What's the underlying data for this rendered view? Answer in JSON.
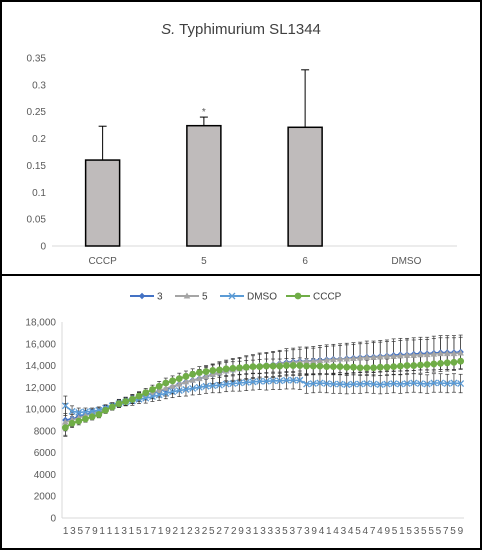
{
  "chart_data": [
    {
      "type": "bar",
      "title_italic": "S.",
      "title_rest": " Typhimurium SL1344",
      "categories": [
        "CCCP",
        "5",
        "6",
        "DMSO"
      ],
      "values": [
        0.16,
        0.224,
        0.221,
        0
      ],
      "errors": [
        0.063,
        0.016,
        0.107,
        0
      ],
      "significance": [
        "",
        "*",
        "",
        ""
      ],
      "yticks": [
        "0",
        "0.05",
        "0.1",
        "0.15",
        "0.2",
        "0.25",
        "0.3",
        "0.35"
      ],
      "ylim": [
        0,
        0.35
      ],
      "bar_color": "#bfbbbb",
      "grid": false
    },
    {
      "type": "line",
      "legend_position": "top",
      "xticks": [
        "1",
        "3",
        "5",
        "7",
        "9",
        "1",
        "1",
        "1",
        "3",
        "1",
        "5",
        "1",
        "7",
        "1",
        "9",
        "2",
        "1",
        "2",
        "3",
        "2",
        "5",
        "2",
        "7",
        "2",
        "9",
        "3",
        "1",
        "3",
        "3",
        "3",
        "5",
        "3",
        "7",
        "3",
        "9",
        "4",
        "1",
        "4",
        "3",
        "4",
        "5",
        "4",
        "7",
        "4",
        "9",
        "5",
        "1",
        "5",
        "3",
        "5",
        "5",
        "5",
        "7",
        "5",
        "9"
      ],
      "yticks": [
        "0",
        "2000",
        "4000",
        "6000",
        "8000",
        "10,000",
        "12,000",
        "14,000",
        "16,000",
        "18,000"
      ],
      "ylim": [
        0,
        18000
      ],
      "x": [
        1,
        2,
        3,
        4,
        5,
        6,
        7,
        8,
        9,
        10,
        11,
        12,
        13,
        14,
        15,
        16,
        17,
        18,
        19,
        20,
        21,
        22,
        23,
        24,
        25,
        26,
        27,
        28,
        29,
        30,
        31,
        32,
        33,
        34,
        35,
        36,
        37,
        38,
        39,
        40,
        41,
        42,
        43,
        44,
        45,
        46,
        47,
        48,
        49,
        50,
        51,
        52,
        53,
        54,
        55,
        56,
        57,
        58,
        59,
        60
      ],
      "series": [
        {
          "name": "3",
          "color": "#4472c4",
          "marker": "diamond",
          "values": [
            9000,
            9100,
            9300,
            9500,
            9700,
            9800,
            10100,
            10300,
            10600,
            10800,
            11000,
            11150,
            11300,
            11450,
            11650,
            11800,
            12050,
            12300,
            12500,
            12650,
            12800,
            13000,
            13200,
            13350,
            13500,
            13600,
            13700,
            13800,
            13900,
            14000,
            14050,
            14100,
            14200,
            14300,
            14350,
            14400,
            14400,
            14450,
            14500,
            14550,
            14600,
            14600,
            14650,
            14700,
            14750,
            14800,
            14800,
            14850,
            14900,
            14950,
            15000,
            15000,
            15050,
            15100,
            15100,
            15150,
            15200,
            15200,
            15200,
            15250
          ],
          "errors": [
            1500,
            700,
            500,
            400,
            300,
            300,
            250,
            250,
            300,
            300,
            350,
            400,
            450,
            500,
            550,
            600,
            650,
            700,
            750,
            800,
            850,
            900,
            950,
            1000,
            1000,
            1050,
            1050,
            1100,
            1100,
            1150,
            1150,
            1200,
            1200,
            1250,
            1250,
            1300,
            1300,
            1300,
            1350,
            1350,
            1350,
            1400,
            1400,
            1400,
            1400,
            1450,
            1450,
            1450,
            1450,
            1500,
            1500,
            1500,
            1500,
            1500,
            1500,
            1550,
            1550,
            1550,
            1550,
            1550
          ]
        },
        {
          "name": "5",
          "color": "#a5a5a5",
          "marker": "triangle",
          "values": [
            8800,
            9000,
            9200,
            9400,
            9600,
            9800,
            10000,
            10250,
            10500,
            10700,
            10900,
            11100,
            11300,
            11500,
            11700,
            11900,
            12100,
            12300,
            12500,
            12650,
            12800,
            13000,
            13200,
            13350,
            13500,
            13600,
            13700,
            13800,
            13900,
            14000,
            14050,
            14100,
            14200,
            14250,
            14300,
            14350,
            14400,
            14400,
            14450,
            14500,
            14550,
            14600,
            14600,
            14650,
            14700,
            14750,
            14750,
            14800,
            14850,
            14850,
            14900,
            14950,
            14950,
            15000,
            15000,
            15050,
            15100,
            15100,
            15100,
            15150
          ],
          "errors": [
            800,
            500,
            400,
            350,
            300,
            300,
            300,
            300,
            350,
            350,
            400,
            400,
            450,
            450,
            500,
            550,
            600,
            650,
            700,
            750,
            800,
            800,
            850,
            900,
            900,
            950,
            950,
            1000,
            1000,
            1050,
            1050,
            1100,
            1100,
            1100,
            1150,
            1150,
            1200,
            1200,
            1200,
            1250,
            1250,
            1250,
            1300,
            1300,
            1300,
            1300,
            1350,
            1350,
            1350,
            1350,
            1400,
            1400,
            1400,
            1400,
            1400,
            1450,
            1450,
            1450,
            1450,
            1450
          ]
        },
        {
          "name": "DMSO",
          "color": "#5b9bd5",
          "marker": "x",
          "values": [
            10300,
            9800,
            9700,
            9750,
            9800,
            9900,
            10100,
            10300,
            10500,
            10650,
            10750,
            10900,
            11000,
            11150,
            11300,
            11450,
            11600,
            11700,
            11800,
            11900,
            12000,
            12100,
            12150,
            12200,
            12300,
            12350,
            12400,
            12450,
            12500,
            12550,
            12550,
            12600,
            12600,
            12650,
            12650,
            12650,
            12300,
            12350,
            12400,
            12350,
            12300,
            12300,
            12250,
            12300,
            12300,
            12350,
            12300,
            12250,
            12300,
            12350,
            12300,
            12350,
            12400,
            12350,
            12300,
            12400,
            12400,
            12350,
            12400,
            12350
          ],
          "errors": [
            900,
            500,
            400,
            350,
            300,
            300,
            300,
            300,
            350,
            350,
            400,
            400,
            450,
            450,
            500,
            500,
            550,
            550,
            600,
            600,
            650,
            650,
            650,
            700,
            700,
            700,
            750,
            750,
            750,
            750,
            800,
            800,
            800,
            800,
            800,
            850,
            850,
            850,
            850,
            850,
            850,
            850,
            850,
            850,
            850,
            850,
            850,
            850,
            850,
            850,
            850,
            850,
            850,
            850,
            850,
            850,
            850,
            850,
            850,
            850
          ]
        },
        {
          "name": "CCCP",
          "color": "#70ad47",
          "marker": "circle",
          "values": [
            8300,
            8700,
            8900,
            9100,
            9300,
            9500,
            9900,
            10200,
            10500,
            10700,
            10900,
            11200,
            11500,
            11800,
            12100,
            12400,
            12600,
            12800,
            13000,
            13200,
            13350,
            13450,
            13550,
            13600,
            13700,
            13750,
            13800,
            13850,
            13900,
            13900,
            13950,
            13950,
            13950,
            14000,
            14000,
            14000,
            13950,
            13950,
            13950,
            13900,
            13900,
            13900,
            13850,
            13850,
            13800,
            13800,
            13800,
            13850,
            13850,
            13900,
            13950,
            14000,
            14000,
            14050,
            14100,
            14150,
            14200,
            14250,
            14300,
            14400
          ],
          "errors": [
            700,
            400,
            350,
            300,
            300,
            300,
            300,
            300,
            300,
            350,
            350,
            400,
            400,
            400,
            450,
            450,
            450,
            500,
            500,
            500,
            550,
            550,
            550,
            550,
            600,
            600,
            600,
            600,
            600,
            650,
            650,
            650,
            650,
            650,
            650,
            700,
            700,
            700,
            700,
            700,
            700,
            700,
            700,
            700,
            700,
            700,
            750,
            750,
            750,
            750,
            750,
            750,
            750,
            750,
            750,
            750,
            750,
            750,
            750,
            750
          ]
        }
      ],
      "grid": false
    }
  ]
}
